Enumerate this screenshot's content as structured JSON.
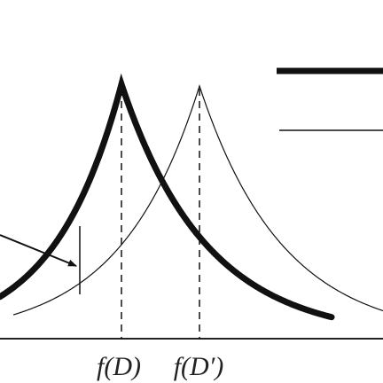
{
  "labels": [
    "f(D)",
    "f(D′)"
  ]
}
